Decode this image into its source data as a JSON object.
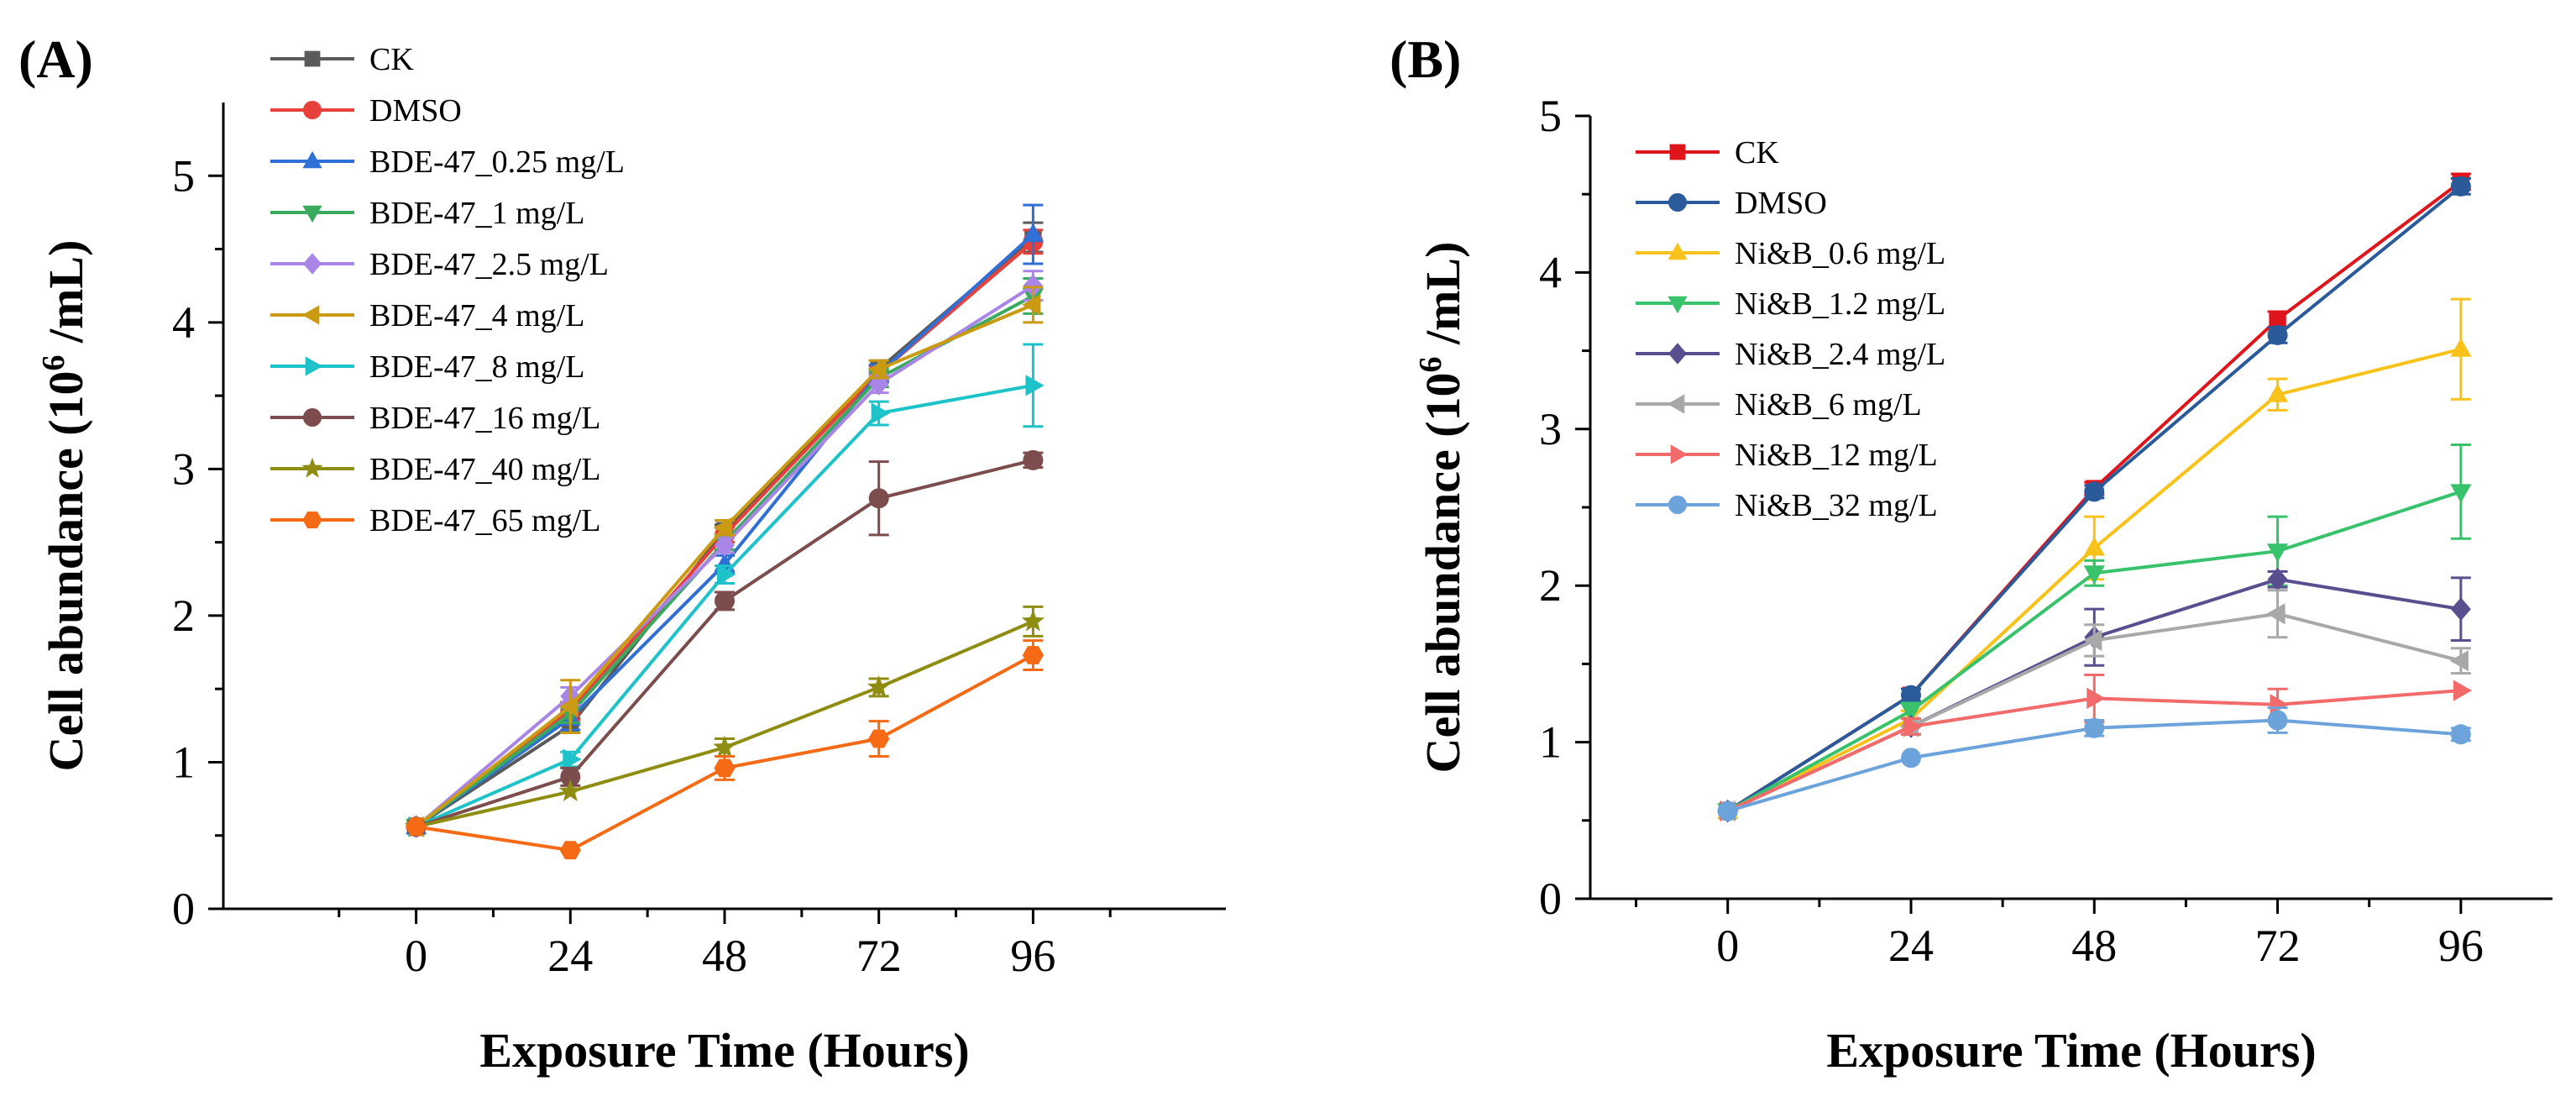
{
  "chart_data": [
    {
      "type": "line",
      "panel_label": "(A)",
      "title": "",
      "xlabel": "Exposure Time (Hours)",
      "ylabel_main": "Cell abundance (10",
      "ylabel_sup": "6",
      "ylabel_tail": " /mL)",
      "x": [
        0,
        24,
        48,
        72,
        96
      ],
      "xlim": [
        -30,
        126
      ],
      "ylim": [
        0,
        5.5
      ],
      "xticks": [
        0,
        24,
        48,
        72,
        96
      ],
      "yticks": [
        0,
        1,
        2,
        3,
        4,
        5
      ],
      "grid": false,
      "legend_position": "top-left",
      "series": [
        {
          "name": "CK",
          "color": "#5a5a5a",
          "marker": "square",
          "values": [
            0.56,
            1.25,
            2.58,
            3.68,
            4.58
          ],
          "errors": [
            0.02,
            0.05,
            0.04,
            0.06,
            0.1
          ]
        },
        {
          "name": "DMSO",
          "color": "#e8413c",
          "marker": "circle",
          "values": [
            0.56,
            1.35,
            2.55,
            3.65,
            4.55
          ],
          "errors": [
            0.02,
            0.06,
            0.05,
            0.05,
            0.08
          ]
        },
        {
          "name": "BDE-47_0.25 mg/L",
          "color": "#2f6fd6",
          "marker": "triangle-up",
          "values": [
            0.56,
            1.3,
            2.35,
            3.65,
            4.6
          ],
          "errors": [
            0.02,
            0.08,
            0.06,
            0.06,
            0.2
          ]
        },
        {
          "name": "BDE-47_1 mg/L",
          "color": "#3aaa5e",
          "marker": "triangle-down",
          "values": [
            0.56,
            1.33,
            2.5,
            3.62,
            4.18
          ],
          "errors": [
            0.02,
            0.06,
            0.05,
            0.06,
            0.12
          ]
        },
        {
          "name": "BDE-47_2.5 mg/L",
          "color": "#a985e8",
          "marker": "diamond",
          "values": [
            0.56,
            1.45,
            2.48,
            3.58,
            4.25
          ],
          "errors": [
            0.02,
            0.06,
            0.05,
            0.06,
            0.1
          ]
        },
        {
          "name": "BDE-47_4 mg/L",
          "color": "#c99a12",
          "marker": "triangle-left",
          "values": [
            0.56,
            1.38,
            2.6,
            3.68,
            4.12
          ],
          "errors": [
            0.02,
            0.18,
            0.05,
            0.06,
            0.12
          ]
        },
        {
          "name": "BDE-47_8 mg/L",
          "color": "#1dc3c8",
          "marker": "triangle-right",
          "values": [
            0.56,
            1.02,
            2.28,
            3.38,
            3.57
          ],
          "errors": [
            0.02,
            0.05,
            0.06,
            0.08,
            0.28
          ]
        },
        {
          "name": "BDE-47_16 mg/L",
          "color": "#7d4d4d",
          "marker": "circle",
          "values": [
            0.56,
            0.9,
            2.1,
            2.8,
            3.06
          ],
          "errors": [
            0.02,
            0.06,
            0.06,
            0.25,
            0.05
          ]
        },
        {
          "name": "BDE-47_40 mg/L",
          "color": "#8e8d12",
          "marker": "star",
          "values": [
            0.56,
            0.8,
            1.1,
            1.51,
            1.96
          ],
          "errors": [
            0.02,
            0.03,
            0.06,
            0.06,
            0.1
          ]
        },
        {
          "name": "BDE-47_65 mg/L",
          "color": "#f56a14",
          "marker": "hexagon",
          "values": [
            0.56,
            0.4,
            0.96,
            1.16,
            1.73
          ],
          "errors": [
            0.02,
            0.03,
            0.08,
            0.12,
            0.1
          ]
        }
      ]
    },
    {
      "type": "line",
      "panel_label": "(B)",
      "title": "",
      "xlabel": "Exposure Time (Hours)",
      "ylabel_main": "Cell abundance (10",
      "ylabel_sup": "6",
      "ylabel_tail": " /mL)",
      "x": [
        0,
        24,
        48,
        72,
        96
      ],
      "xlim": [
        -18,
        108
      ],
      "ylim": [
        0,
        5
      ],
      "xticks": [
        0,
        24,
        48,
        72,
        96
      ],
      "yticks": [
        0,
        1,
        2,
        3,
        4,
        5
      ],
      "grid": false,
      "legend_position": "top-left",
      "series": [
        {
          "name": "CK",
          "color": "#e0151b",
          "marker": "square",
          "values": [
            0.56,
            1.3,
            2.62,
            3.7,
            4.58
          ],
          "errors": [
            0.02,
            0.04,
            0.04,
            0.05,
            0.05
          ]
        },
        {
          "name": "DMSO",
          "color": "#2b5a9a",
          "marker": "circle",
          "values": [
            0.56,
            1.3,
            2.6,
            3.6,
            4.55
          ],
          "errors": [
            0.02,
            0.04,
            0.04,
            0.05,
            0.05
          ]
        },
        {
          "name": "Ni&B_0.6 mg/L",
          "color": "#f8c21a",
          "marker": "triangle-up",
          "values": [
            0.56,
            1.15,
            2.24,
            3.22,
            3.51
          ],
          "errors": [
            0.02,
            0.05,
            0.2,
            0.1,
            0.32
          ]
        },
        {
          "name": "Ni&B_1.2 mg/L",
          "color": "#38c26b",
          "marker": "triangle-down",
          "values": [
            0.56,
            1.2,
            2.08,
            2.22,
            2.6
          ],
          "errors": [
            0.02,
            0.05,
            0.08,
            0.22,
            0.3
          ]
        },
        {
          "name": "Ni&B_2.4 mg/L",
          "color": "#5a4f8e",
          "marker": "diamond",
          "values": [
            0.56,
            1.1,
            1.67,
            2.04,
            1.85
          ],
          "errors": [
            0.02,
            0.05,
            0.18,
            0.05,
            0.2
          ]
        },
        {
          "name": "Ni&B_6 mg/L",
          "color": "#a8a8a8",
          "marker": "triangle-left",
          "values": [
            0.56,
            1.1,
            1.65,
            1.82,
            1.52
          ],
          "errors": [
            0.02,
            0.05,
            0.1,
            0.15,
            0.08
          ]
        },
        {
          "name": "Ni&B_12 mg/L",
          "color": "#f26a6a",
          "marker": "triangle-right",
          "values": [
            0.56,
            1.1,
            1.28,
            1.24,
            1.33
          ],
          "errors": [
            0.02,
            0.05,
            0.15,
            0.1,
            0.03
          ]
        },
        {
          "name": "Ni&B_32 mg/L",
          "color": "#6da3db",
          "marker": "circle",
          "values": [
            0.56,
            0.9,
            1.09,
            1.14,
            1.05
          ],
          "errors": [
            0.02,
            0.03,
            0.05,
            0.08,
            0.04
          ]
        }
      ]
    }
  ]
}
